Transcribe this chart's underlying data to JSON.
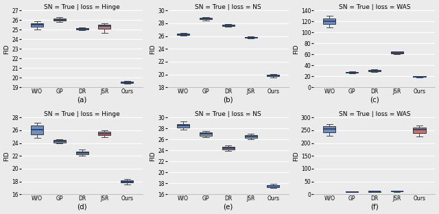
{
  "panels": [
    {
      "title": "SN = True | loss = Hinge",
      "label": "(a)",
      "categories": [
        "W/O",
        "GP",
        "DR",
        "JSR",
        "Ours"
      ],
      "ylim": [
        19,
        27
      ],
      "yticks": [
        19,
        20,
        21,
        22,
        23,
        24,
        25,
        26,
        27
      ],
      "ylabel": "FID",
      "boxes": [
        {
          "med": 25.5,
          "q1": 25.3,
          "q3": 25.7,
          "whislo": 25.05,
          "whishi": 25.85,
          "color": "#5878b0"
        },
        {
          "med": 26.05,
          "q1": 25.92,
          "q3": 26.18,
          "whislo": 25.82,
          "whishi": 26.28,
          "color": "#d4874e"
        },
        {
          "med": 25.12,
          "q1": 25.05,
          "q3": 25.19,
          "whislo": 24.95,
          "whishi": 25.25,
          "color": "#778899"
        },
        {
          "med": 25.35,
          "q1": 25.1,
          "q3": 25.55,
          "whislo": 24.65,
          "whishi": 25.65,
          "color": "#c0574e"
        },
        {
          "med": 19.52,
          "q1": 19.44,
          "q3": 19.6,
          "whislo": 19.38,
          "whishi": 19.66,
          "color": "#5878b0"
        }
      ]
    },
    {
      "title": "SN = True | loss = NS",
      "label": "(b)",
      "categories": [
        "W/O",
        "GP",
        "DR",
        "JSR",
        "Ours"
      ],
      "ylim": [
        18,
        30
      ],
      "yticks": [
        18,
        20,
        22,
        24,
        26,
        28,
        30
      ],
      "ylabel": "FID",
      "boxes": [
        {
          "med": 26.3,
          "q1": 26.18,
          "q3": 26.42,
          "whislo": 26.05,
          "whishi": 26.55,
          "color": "#778899"
        },
        {
          "med": 28.72,
          "q1": 28.6,
          "q3": 28.84,
          "whislo": 28.48,
          "whishi": 28.96,
          "color": "#d4874e"
        },
        {
          "med": 27.65,
          "q1": 27.55,
          "q3": 27.75,
          "whislo": 27.42,
          "whishi": 27.85,
          "color": "#778899"
        },
        {
          "med": 25.8,
          "q1": 25.72,
          "q3": 25.88,
          "whislo": 25.62,
          "whishi": 25.95,
          "color": "#778899"
        },
        {
          "med": 19.82,
          "q1": 19.72,
          "q3": 19.92,
          "whislo": 19.58,
          "whishi": 20.05,
          "color": "#5878b0"
        }
      ]
    },
    {
      "title": "SN = True | loss = WAS",
      "label": "(c)",
      "categories": [
        "W/O",
        "GP",
        "DR",
        "JSR",
        "Ours"
      ],
      "ylim": [
        0,
        140
      ],
      "yticks": [
        0,
        20,
        40,
        60,
        80,
        100,
        120,
        140
      ],
      "ylabel": "FID",
      "boxes": [
        {
          "med": 121.0,
          "q1": 116.0,
          "q3": 125.0,
          "whislo": 109.0,
          "whishi": 130.0,
          "color": "#5878b0"
        },
        {
          "med": 27.0,
          "q1": 26.3,
          "q3": 27.7,
          "whislo": 25.5,
          "whishi": 28.5,
          "color": "#778899"
        },
        {
          "med": 30.5,
          "q1": 29.2,
          "q3": 31.8,
          "whislo": 27.5,
          "whishi": 33.0,
          "color": "#778899"
        },
        {
          "med": 63.0,
          "q1": 61.5,
          "q3": 64.8,
          "whislo": 60.0,
          "whishi": 66.0,
          "color": "#c0574e"
        },
        {
          "med": 19.5,
          "q1": 19.0,
          "q3": 20.0,
          "whislo": 18.3,
          "whishi": 20.7,
          "color": "#778899"
        }
      ]
    },
    {
      "title": "SN = True | loss = Hinge",
      "label": "(d)",
      "categories": [
        "W/O",
        "GP",
        "DR",
        "JSR",
        "Ours"
      ],
      "ylim": [
        16,
        28
      ],
      "yticks": [
        16,
        18,
        20,
        22,
        24,
        26,
        28
      ],
      "ylabel": "FID",
      "boxes": [
        {
          "med": 26.1,
          "q1": 25.4,
          "q3": 26.75,
          "whislo": 24.85,
          "whishi": 27.2,
          "color": "#5878b0"
        },
        {
          "med": 24.3,
          "q1": 24.12,
          "q3": 24.48,
          "whislo": 23.92,
          "whishi": 24.65,
          "color": "#778899"
        },
        {
          "med": 22.5,
          "q1": 22.28,
          "q3": 22.72,
          "whislo": 22.05,
          "whishi": 22.95,
          "color": "#778899"
        },
        {
          "med": 25.5,
          "q1": 25.25,
          "q3": 25.75,
          "whislo": 24.95,
          "whishi": 26.0,
          "color": "#c0574e"
        },
        {
          "med": 18.0,
          "q1": 17.82,
          "q3": 18.18,
          "whislo": 17.58,
          "whishi": 18.38,
          "color": "#5878b0"
        }
      ]
    },
    {
      "title": "SN = True | loss = NS",
      "label": "(e)",
      "categories": [
        "W/O",
        "GP",
        "DR",
        "JSR",
        "Ours"
      ],
      "ylim": [
        16,
        30
      ],
      "yticks": [
        16,
        18,
        20,
        22,
        24,
        26,
        28,
        30
      ],
      "ylabel": "FID",
      "boxes": [
        {
          "med": 28.5,
          "q1": 28.15,
          "q3": 28.85,
          "whislo": 27.75,
          "whishi": 29.25,
          "color": "#5878b0"
        },
        {
          "med": 27.0,
          "q1": 26.72,
          "q3": 27.28,
          "whislo": 26.42,
          "whishi": 27.58,
          "color": "#778899"
        },
        {
          "med": 24.4,
          "q1": 24.18,
          "q3": 24.62,
          "whislo": 23.92,
          "whishi": 24.88,
          "color": "#c0574e"
        },
        {
          "med": 26.5,
          "q1": 26.25,
          "q3": 26.75,
          "whislo": 25.98,
          "whishi": 27.02,
          "color": "#778899"
        },
        {
          "med": 17.5,
          "q1": 17.32,
          "q3": 17.68,
          "whislo": 17.1,
          "whishi": 17.88,
          "color": "#5878b0"
        }
      ]
    },
    {
      "title": "SN = True | loss = WAS",
      "label": "(f)",
      "categories": [
        "W/O",
        "GP",
        "DR",
        "JSR",
        "Ours"
      ],
      "ylim": [
        0,
        300
      ],
      "yticks": [
        0,
        50,
        100,
        150,
        200,
        250,
        300
      ],
      "ylabel": "FID",
      "boxes": [
        {
          "med": 255.0,
          "q1": 242.0,
          "q3": 265.0,
          "whislo": 228.0,
          "whishi": 275.0,
          "color": "#5878b0"
        },
        {
          "med": 10.0,
          "q1": 9.2,
          "q3": 10.8,
          "whislo": 8.2,
          "whishi": 11.8,
          "color": "#778899"
        },
        {
          "med": 10.5,
          "q1": 9.7,
          "q3": 11.3,
          "whislo": 8.7,
          "whishi": 12.3,
          "color": "#778899"
        },
        {
          "med": 11.0,
          "q1": 10.2,
          "q3": 11.8,
          "whislo": 9.2,
          "whishi": 12.8,
          "color": "#778899"
        },
        {
          "med": 252.0,
          "q1": 240.0,
          "q3": 262.0,
          "whislo": 226.0,
          "whishi": 270.0,
          "color": "#c0574e"
        }
      ]
    }
  ],
  "bg_color": "#ebebeb",
  "box_width": 0.55,
  "median_color": "#1a3a6e",
  "whisker_color": "#444444",
  "cap_color": "#444444",
  "title_fontsize": 6.5,
  "label_fontsize": 7.5,
  "tick_fontsize": 5.5,
  "ylabel_fontsize": 6.5,
  "grid_color": "#ffffff",
  "figsize": [
    6.4,
    3.12
  ],
  "dpi": 100
}
